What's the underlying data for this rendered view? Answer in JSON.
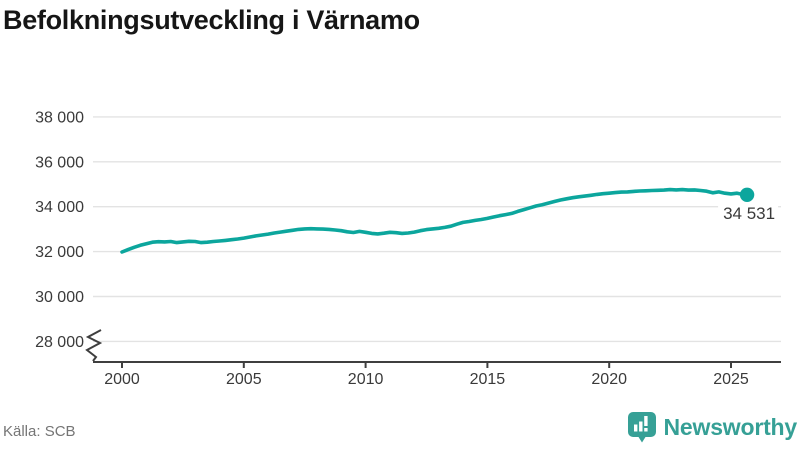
{
  "header": {
    "title": "Befolkningsutveckling i Värnamo"
  },
  "footer": {
    "source": "Källa: SCB",
    "brand": "Newsworthy"
  },
  "chart_data": {
    "type": "line",
    "title": "Befolkningsutveckling i Värnamo",
    "series_name": "Befolkning i Värnamo",
    "xlabel": "",
    "ylabel": "",
    "xlim": [
      2000,
      2025.66
    ],
    "ylim": [
      28000,
      38000
    ],
    "axis_break_at_bottom": true,
    "grid": "horizontal",
    "legend": "none",
    "x_ticks": [
      2000,
      2005,
      2010,
      2015,
      2020,
      2025
    ],
    "x_tick_labels": [
      "2000",
      "2005",
      "2010",
      "2015",
      "2020",
      "2025"
    ],
    "y_ticks": [
      28000,
      30000,
      32000,
      34000,
      36000,
      38000
    ],
    "y_tick_labels": [
      "28 000",
      "30 000",
      "32 000",
      "34 000",
      "36 000",
      "38 000"
    ],
    "end_label": "34 531",
    "end_value": 34531,
    "x": [
      2000,
      2000.25,
      2000.5,
      2000.75,
      2001,
      2001.25,
      2001.5,
      2001.75,
      2002,
      2002.25,
      2002.5,
      2002.75,
      2003,
      2003.25,
      2003.5,
      2003.75,
      2004,
      2004.25,
      2004.5,
      2004.75,
      2005,
      2005.25,
      2005.5,
      2005.75,
      2006,
      2006.25,
      2006.5,
      2006.75,
      2007,
      2007.25,
      2007.5,
      2007.75,
      2008,
      2008.25,
      2008.5,
      2008.75,
      2009,
      2009.25,
      2009.5,
      2009.75,
      2010,
      2010.25,
      2010.5,
      2010.75,
      2011,
      2011.25,
      2011.5,
      2011.75,
      2012,
      2012.25,
      2012.5,
      2012.75,
      2013,
      2013.25,
      2013.5,
      2013.75,
      2014,
      2014.25,
      2014.5,
      2014.75,
      2015,
      2015.25,
      2015.5,
      2015.75,
      2016,
      2016.25,
      2016.5,
      2016.75,
      2017,
      2017.25,
      2017.5,
      2017.75,
      2018,
      2018.25,
      2018.5,
      2018.75,
      2019,
      2019.25,
      2019.5,
      2019.75,
      2020,
      2020.25,
      2020.5,
      2020.75,
      2021,
      2021.25,
      2021.5,
      2021.75,
      2022,
      2022.25,
      2022.5,
      2022.75,
      2023,
      2023.25,
      2023.5,
      2023.75,
      2024,
      2024.25,
      2024.5,
      2024.75,
      2025,
      2025.25,
      2025.5,
      2025.66
    ],
    "y": [
      31980,
      32090,
      32190,
      32280,
      32350,
      32420,
      32440,
      32430,
      32450,
      32400,
      32430,
      32460,
      32450,
      32400,
      32420,
      32450,
      32470,
      32500,
      32530,
      32560,
      32600,
      32650,
      32700,
      32740,
      32780,
      32830,
      32870,
      32910,
      32950,
      32990,
      33010,
      33020,
      33010,
      33000,
      32990,
      32960,
      32930,
      32880,
      32850,
      32900,
      32860,
      32810,
      32790,
      32820,
      32860,
      32840,
      32810,
      32830,
      32870,
      32930,
      32980,
      33010,
      33040,
      33080,
      33130,
      33220,
      33300,
      33340,
      33390,
      33430,
      33480,
      33540,
      33600,
      33650,
      33700,
      33790,
      33870,
      33950,
      34030,
      34090,
      34160,
      34230,
      34300,
      34350,
      34400,
      34440,
      34470,
      34510,
      34550,
      34580,
      34600,
      34630,
      34650,
      34660,
      34680,
      34700,
      34710,
      34720,
      34730,
      34740,
      34760,
      34750,
      34760,
      34740,
      34750,
      34720,
      34690,
      34620,
      34660,
      34600,
      34570,
      34600,
      34545,
      34531
    ],
    "colors": {
      "line": "#0ca69d",
      "grid": "#e3e3e3",
      "axis": "#3f3f3f",
      "tick_text": "#3a3a3a",
      "end_label_text": "#3a3a3a",
      "brand": "#36a096"
    }
  }
}
